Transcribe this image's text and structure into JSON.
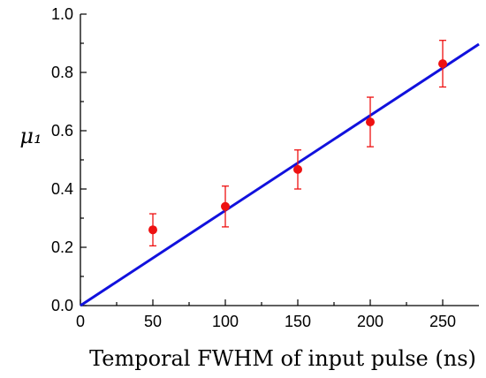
{
  "chart_data": {
    "type": "scatter",
    "xlabel": "Temporal FWHM of input pulse (ns)",
    "ylabel": "μ₁",
    "xlim": [
      0,
      275
    ],
    "ylim": [
      0.0,
      1.0
    ],
    "x_ticks": [
      0,
      50,
      100,
      150,
      200,
      250
    ],
    "x_tick_labels": [
      "0",
      "50",
      "100",
      "150",
      "200",
      "250"
    ],
    "y_ticks": [
      0.0,
      0.2,
      0.4,
      0.6,
      0.8,
      1.0
    ],
    "y_tick_labels": [
      "0.0",
      "0.2",
      "0.4",
      "0.6",
      "0.8",
      "1.0"
    ],
    "grid": false,
    "series": [
      {
        "kind": "points",
        "color": "#ee1111",
        "x": [
          50,
          100,
          150,
          200,
          250
        ],
        "y": [
          0.26,
          0.34,
          0.467,
          0.63,
          0.83
        ],
        "error": [
          0.055,
          0.07,
          0.067,
          0.085,
          0.08
        ]
      },
      {
        "kind": "fit-line",
        "color": "#1111dd",
        "x": [
          0,
          275
        ],
        "y": [
          0.0,
          0.897
        ]
      }
    ]
  }
}
